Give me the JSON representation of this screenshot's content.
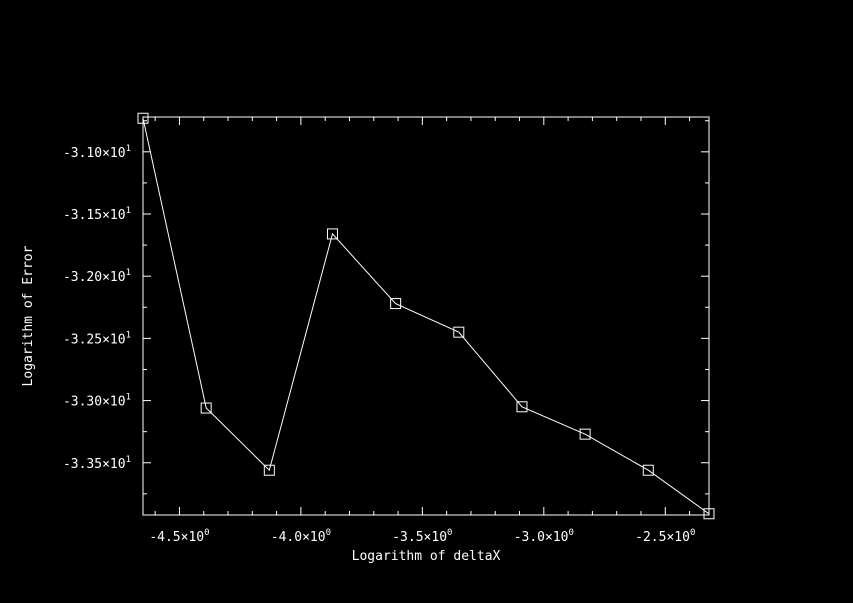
{
  "chart_data": {
    "type": "line",
    "xlabel": "Logarithm of deltaX",
    "ylabel": "Logarithm of Error",
    "xlim": [
      -4.65,
      -2.32
    ],
    "ylim": [
      -33.92,
      -30.72
    ],
    "x_ticks": [
      {
        "value": -4.5,
        "mantissa": "-4.5×10",
        "exponent": "0"
      },
      {
        "value": -4.0,
        "mantissa": "-4.0×10",
        "exponent": "0"
      },
      {
        "value": -3.5,
        "mantissa": "-3.5×10",
        "exponent": "0"
      },
      {
        "value": -3.0,
        "mantissa": "-3.0×10",
        "exponent": "0"
      },
      {
        "value": -2.5,
        "mantissa": "-2.5×10",
        "exponent": "0"
      }
    ],
    "y_ticks": [
      {
        "value": -31.0,
        "mantissa": "-3.10×10",
        "exponent": "1"
      },
      {
        "value": -31.5,
        "mantissa": "-3.15×10",
        "exponent": "1"
      },
      {
        "value": -32.0,
        "mantissa": "-3.20×10",
        "exponent": "1"
      },
      {
        "value": -32.5,
        "mantissa": "-3.25×10",
        "exponent": "1"
      },
      {
        "value": -33.0,
        "mantissa": "-3.30×10",
        "exponent": "1"
      },
      {
        "value": -33.5,
        "mantissa": "-3.35×10",
        "exponent": "1"
      }
    ],
    "series": [
      {
        "points": [
          {
            "x": -4.65,
            "y": -30.73
          },
          {
            "x": -4.39,
            "y": -33.06
          },
          {
            "x": -4.13,
            "y": -33.56
          },
          {
            "x": -3.87,
            "y": -31.66
          },
          {
            "x": -3.61,
            "y": -32.22
          },
          {
            "x": -3.35,
            "y": -32.45
          },
          {
            "x": -3.09,
            "y": -33.05
          },
          {
            "x": -2.83,
            "y": -33.27
          },
          {
            "x": -2.57,
            "y": -33.56
          },
          {
            "x": -2.32,
            "y": -33.91
          }
        ]
      }
    ],
    "marker": "square",
    "grid": false,
    "colors": {
      "background": "#000000",
      "foreground": "#ffffff"
    }
  }
}
